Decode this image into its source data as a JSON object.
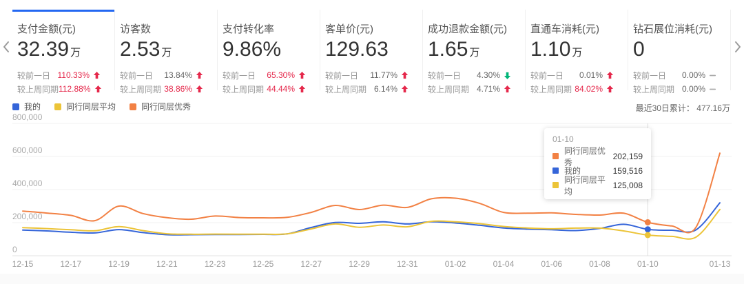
{
  "colors": {
    "accent_blue": "#2468f2",
    "red": "#e5284b",
    "green": "#00b578",
    "gray_value": "#666666",
    "series_mine": "#3565d9",
    "series_peer_avg": "#ecc438",
    "series_peer_top": "#f28144"
  },
  "nav": {
    "prev_icon": "chevron-left",
    "next_icon": "chevron-right"
  },
  "cards": [
    {
      "key": "payment-amount",
      "title": "支付金额(元)",
      "value": "32.39",
      "unit": "万",
      "selected": true,
      "rows": [
        {
          "label": "较前一日",
          "value": "110.33%",
          "value_color": "red",
          "trend": "up"
        },
        {
          "label": "较上周同期",
          "value": "112.88%",
          "value_color": "red",
          "trend": "up"
        }
      ]
    },
    {
      "key": "visitors",
      "title": "访客数",
      "value": "2.53",
      "unit": "万",
      "selected": false,
      "rows": [
        {
          "label": "较前一日",
          "value": "13.84%",
          "value_color": "gray",
          "trend": "up"
        },
        {
          "label": "较上周同期",
          "value": "38.86%",
          "value_color": "red",
          "trend": "up"
        }
      ]
    },
    {
      "key": "conversion-rate",
      "title": "支付转化率",
      "value": "9.86%",
      "unit": "",
      "selected": false,
      "rows": [
        {
          "label": "较前一日",
          "value": "65.30%",
          "value_color": "red",
          "trend": "up"
        },
        {
          "label": "较上周同期",
          "value": "44.44%",
          "value_color": "red",
          "trend": "up"
        }
      ]
    },
    {
      "key": "avg-order-value",
      "title": "客单价(元)",
      "value": "129.63",
      "unit": "",
      "selected": false,
      "rows": [
        {
          "label": "较前一日",
          "value": "11.77%",
          "value_color": "gray",
          "trend": "up"
        },
        {
          "label": "较上周同期",
          "value": "6.14%",
          "value_color": "gray",
          "trend": "up"
        }
      ]
    },
    {
      "key": "refund-amount",
      "title": "成功退款金额(元)",
      "value": "1.65",
      "unit": "万",
      "selected": false,
      "rows": [
        {
          "label": "较前一日",
          "value": "4.30%",
          "value_color": "gray",
          "trend": "down"
        },
        {
          "label": "较上周同期",
          "value": "4.71%",
          "value_color": "gray",
          "trend": "up"
        }
      ]
    },
    {
      "key": "ztc-cost",
      "title": "直通车消耗(元)",
      "value": "1.10",
      "unit": "万",
      "selected": false,
      "rows": [
        {
          "label": "较前一日",
          "value": "0.01%",
          "value_color": "gray",
          "trend": "up"
        },
        {
          "label": "较上周同期",
          "value": "84.02%",
          "value_color": "red",
          "trend": "up"
        }
      ]
    },
    {
      "key": "diamond-cost",
      "title": "钻石展位消耗(元)",
      "value": "0",
      "unit": "",
      "selected": false,
      "rows": [
        {
          "label": "较前一日",
          "value": "0.00%",
          "value_color": "gray",
          "trend": "flat"
        },
        {
          "label": "较上周同期",
          "value": "0.00%",
          "value_color": "gray",
          "trend": "flat"
        }
      ]
    }
  ],
  "legend": {
    "items": [
      {
        "key": "mine",
        "label": "我的",
        "color": "#3565d9"
      },
      {
        "key": "peer-avg",
        "label": "同行同层平均",
        "color": "#ecc438"
      },
      {
        "key": "peer-top",
        "label": "同行同层优秀",
        "color": "#f28144"
      }
    ]
  },
  "summary": {
    "label": "最近30日累计：",
    "value": "477.16万"
  },
  "tooltip": {
    "date": "01-10",
    "rows": [
      {
        "key": "peer-top",
        "label": "同行同层优秀",
        "value": "202,159",
        "color": "#f28144"
      },
      {
        "key": "mine",
        "label": "我的",
        "value": "159,516",
        "color": "#3565d9"
      },
      {
        "key": "peer-avg",
        "label": "同行同层平均",
        "value": "125,008",
        "color": "#ecc438"
      }
    ]
  },
  "chart_data": {
    "type": "line",
    "title": "",
    "x": [
      "12-15",
      "12-16",
      "12-17",
      "12-18",
      "12-19",
      "12-20",
      "12-21",
      "12-22",
      "12-23",
      "12-24",
      "12-25",
      "12-26",
      "12-27",
      "12-28",
      "12-29",
      "12-30",
      "12-31",
      "01-01",
      "01-02",
      "01-03",
      "01-04",
      "01-05",
      "01-06",
      "01-07",
      "01-08",
      "01-09",
      "01-10",
      "01-11",
      "01-12",
      "01-13"
    ],
    "visible_tick_labels": [
      "12-15",
      "12-17",
      "12-19",
      "12-21",
      "12-23",
      "12-25",
      "12-27",
      "12-29",
      "12-31",
      "01-02",
      "01-04",
      "01-06",
      "01-08",
      "01-10",
      "01-13"
    ],
    "y_ticks": [
      "0",
      "200,000",
      "400,000",
      "600,000",
      "800,000"
    ],
    "y_tick_values": [
      0,
      200000,
      400000,
      600000,
      800000
    ],
    "ylim": [
      0,
      800000
    ],
    "xlabel": "",
    "ylabel": "",
    "grid": true,
    "legend_position": "top-left",
    "hover": {
      "index": 26,
      "date": "01-10"
    },
    "series": [
      {
        "key": "mine",
        "name": "我的",
        "color": "#3565d9",
        "values": [
          155000,
          150000,
          142000,
          138000,
          158000,
          140000,
          127000,
          127000,
          128000,
          128000,
          129000,
          132000,
          171000,
          201000,
          196000,
          205000,
          192000,
          205000,
          198000,
          184000,
          168000,
          161000,
          157000,
          152000,
          165000,
          190000,
          159516,
          154000,
          156000,
          320000
        ]
      },
      {
        "key": "peer-avg",
        "name": "同行同层平均",
        "color": "#ecc438",
        "values": [
          170000,
          164000,
          157000,
          151000,
          176000,
          152000,
          133000,
          130000,
          131000,
          130000,
          130000,
          132000,
          162000,
          192000,
          172000,
          186000,
          175000,
          208000,
          205000,
          194000,
          177000,
          168000,
          163000,
          167000,
          167000,
          150000,
          125008,
          117000,
          112000,
          280000
        ]
      },
      {
        "key": "peer-top",
        "name": "同行同层优秀",
        "color": "#f28144",
        "values": [
          270000,
          258000,
          244000,
          212000,
          300000,
          255000,
          230000,
          221000,
          240000,
          231000,
          229000,
          232000,
          262000,
          304000,
          279000,
          306000,
          292000,
          344000,
          348000,
          317000,
          262000,
          257000,
          259000,
          250000,
          246000,
          257000,
          202159,
          180000,
          171000,
          620000
        ]
      }
    ]
  }
}
